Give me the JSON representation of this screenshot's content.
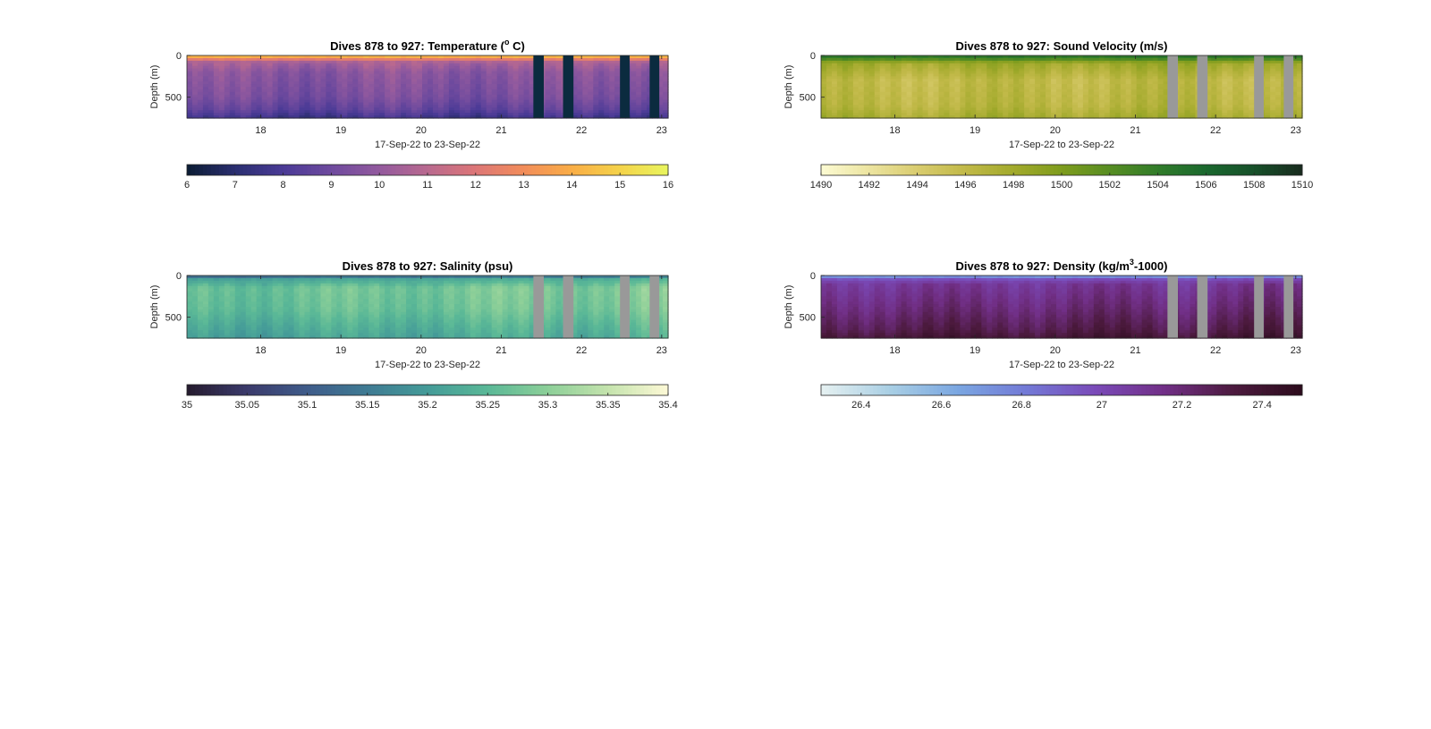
{
  "chart_data": [
    {
      "type": "heatmap",
      "title": "Dives 878 to 927: Temperature (",
      "title_sup": "o",
      "title_suffix": " C)",
      "xlabel": "17-Sep-22 to 23-Sep-22",
      "ylabel": "Depth (m)",
      "xlim": [
        17.08,
        23.08
      ],
      "ylim": [
        0,
        750
      ],
      "x_ticks": [
        18,
        19,
        20,
        21,
        22,
        23
      ],
      "y_ticks": [
        0,
        500
      ],
      "gaps": [
        [
          21.4,
          21.53
        ],
        [
          21.77,
          21.9
        ],
        [
          22.48,
          22.6
        ],
        [
          22.85,
          22.97
        ]
      ],
      "gap_color": "#0b2b3f",
      "colorbar": {
        "ticks": [
          6,
          7,
          8,
          9,
          10,
          11,
          12,
          13,
          14,
          15,
          16
        ],
        "range": [
          6,
          16
        ],
        "colors": [
          "#0b1c33",
          "#2a2e70",
          "#4a3a96",
          "#6e4a9e",
          "#935a9e",
          "#b9698f",
          "#dc7677",
          "#f28d5a",
          "#f9ad46",
          "#f4d34a",
          "#e9f55e"
        ]
      },
      "profile": [
        {
          "depth": 0,
          "value": 15.0
        },
        {
          "depth": 30,
          "value": 13.2
        },
        {
          "depth": 80,
          "value": 10.6
        },
        {
          "depth": 200,
          "value": 9.8
        },
        {
          "depth": 500,
          "value": 9.3
        },
        {
          "depth": 650,
          "value": 8.6
        },
        {
          "depth": 750,
          "value": 7.6
        }
      ]
    },
    {
      "type": "heatmap",
      "title": "Dives 878 to 927: Sound Velocity (m/s)",
      "title_sup": "",
      "title_suffix": "",
      "xlabel": "17-Sep-22 to 23-Sep-22",
      "ylabel": "Depth (m)",
      "xlim": [
        17.08,
        23.08
      ],
      "ylim": [
        0,
        750
      ],
      "x_ticks": [
        18,
        19,
        20,
        21,
        22,
        23
      ],
      "y_ticks": [
        0,
        500
      ],
      "gaps": [
        [
          21.4,
          21.53
        ],
        [
          21.77,
          21.9
        ],
        [
          22.48,
          22.6
        ],
        [
          22.85,
          22.97
        ]
      ],
      "gap_color": "#999999",
      "colorbar": {
        "ticks": [
          1490,
          1492,
          1494,
          1496,
          1498,
          1500,
          1502,
          1504,
          1506,
          1508,
          1510
        ],
        "range": [
          1490,
          1510
        ],
        "colors": [
          "#fcfbd3",
          "#ece4a0",
          "#d9cc6f",
          "#c1b948",
          "#a2aa2c",
          "#7e9c1d",
          "#578d22",
          "#317c2a",
          "#1a682e",
          "#17502a",
          "#182a1d"
        ]
      },
      "profile": [
        {
          "depth": 0,
          "value": 1505.0
        },
        {
          "depth": 40,
          "value": 1503.0
        },
        {
          "depth": 90,
          "value": 1498.2
        },
        {
          "depth": 300,
          "value": 1496.0
        },
        {
          "depth": 600,
          "value": 1496.5
        },
        {
          "depth": 750,
          "value": 1497.8
        }
      ]
    },
    {
      "type": "heatmap",
      "title": "Dives 878 to 927: Salinity (psu)",
      "title_sup": "",
      "title_suffix": "",
      "xlabel": "17-Sep-22 to 23-Sep-22",
      "ylabel": "Depth (m)",
      "xlim": [
        17.08,
        23.08
      ],
      "ylim": [
        0,
        750
      ],
      "x_ticks": [
        18,
        19,
        20,
        21,
        22,
        23
      ],
      "y_ticks": [
        0,
        500
      ],
      "gaps": [
        [
          21.4,
          21.53
        ],
        [
          21.77,
          21.9
        ],
        [
          22.48,
          22.6
        ],
        [
          22.85,
          22.97
        ]
      ],
      "gap_color": "#999999",
      "colorbar": {
        "ticks": [
          35,
          35.05,
          35.1,
          35.15,
          35.2,
          35.25,
          35.3,
          35.35,
          35.4
        ],
        "range": [
          35,
          35.4
        ],
        "colors": [
          "#251b2e",
          "#3b3a6b",
          "#3f5c8a",
          "#3f7b93",
          "#449b98",
          "#5ab897",
          "#8ccf98",
          "#c4e3ad",
          "#fdf9d6"
        ]
      },
      "profile": [
        {
          "depth": 0,
          "value": 35.1
        },
        {
          "depth": 40,
          "value": 35.22
        },
        {
          "depth": 150,
          "value": 35.28
        },
        {
          "depth": 400,
          "value": 35.27
        },
        {
          "depth": 600,
          "value": 35.24
        },
        {
          "depth": 750,
          "value": 35.22
        }
      ]
    },
    {
      "type": "heatmap",
      "title": "Dives 878 to 927: Density (kg/m",
      "title_sup": "3",
      "title_suffix": "-1000)",
      "xlabel": "17-Sep-22 to 23-Sep-22",
      "ylabel": "Depth (m)",
      "xlim": [
        17.08,
        23.08
      ],
      "ylim": [
        0,
        750
      ],
      "x_ticks": [
        18,
        19,
        20,
        21,
        22,
        23
      ],
      "y_ticks": [
        0,
        500
      ],
      "gaps": [
        [
          21.4,
          21.53
        ],
        [
          21.77,
          21.9
        ],
        [
          22.48,
          22.6
        ],
        [
          22.85,
          22.97
        ]
      ],
      "gap_color": "#999999",
      "colorbar": {
        "ticks": [
          26.4,
          26.6,
          26.8,
          27,
          27.2,
          27.4
        ],
        "range": [
          26.3,
          27.5
        ],
        "colors": [
          "#e6f1f1",
          "#a9cfe4",
          "#7aa6e1",
          "#7379d6",
          "#7a4ab8",
          "#712f86",
          "#4c1a3e",
          "#2c0c1c"
        ]
      },
      "profile": [
        {
          "depth": 0,
          "value": 26.6
        },
        {
          "depth": 40,
          "value": 26.95
        },
        {
          "depth": 100,
          "value": 27.1
        },
        {
          "depth": 400,
          "value": 27.2
        },
        {
          "depth": 650,
          "value": 27.3
        },
        {
          "depth": 750,
          "value": 27.38
        }
      ]
    }
  ]
}
